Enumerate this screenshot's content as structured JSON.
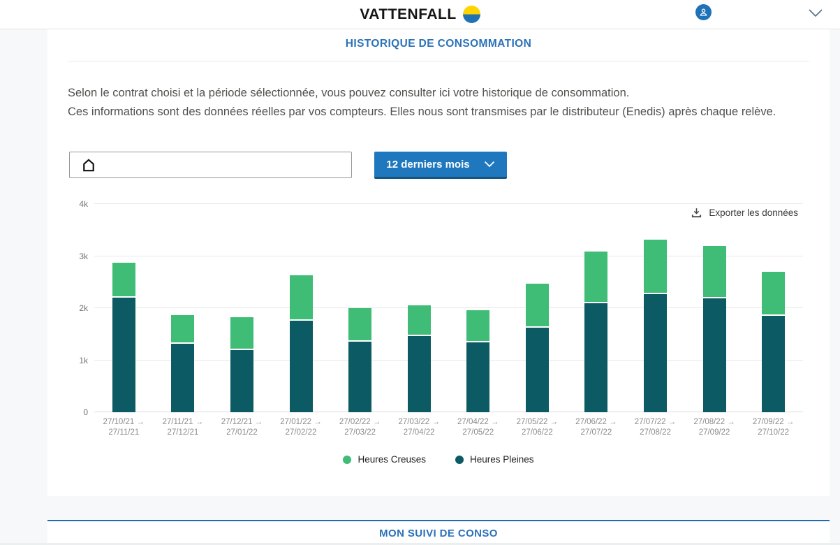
{
  "header": {
    "logo_text": "VATTENFALL",
    "brand_yellow": "#FFD400",
    "brand_blue": "#2071B5"
  },
  "consumption_section": {
    "title": "HISTORIQUE DE CONSOMMATION",
    "description_line1": "Selon le contrat choisi et la période sélectionnée, vous pouvez consulter ici votre historique de consommation.",
    "description_line2": "Ces informations sont des données réelles par vos compteurs. Elles nous sont transmises par le distributeur (Enedis) après chaque relève.",
    "address_select_value": "",
    "period_button_label": "12 derniers mois",
    "export_label": "Exporter les données"
  },
  "chart_data": {
    "type": "bar",
    "stacked": true,
    "title": "",
    "xlabel": "",
    "ylabel": "",
    "ylim": [
      0,
      4000
    ],
    "yticks": [
      "0",
      "1k",
      "2k",
      "3k",
      "4k"
    ],
    "grid": true,
    "legend_position": "bottom",
    "legend_order": [
      "Heures Creuses",
      "Heures Pleines"
    ],
    "categories": [
      "27/10/21 → 27/11/21",
      "27/11/21 → 27/12/21",
      "27/12/21 → 27/01/22",
      "27/01/22 → 27/02/22",
      "27/02/22 → 27/03/22",
      "27/03/22 → 27/04/22",
      "27/04/22 → 27/05/22",
      "27/05/22 → 27/06/22",
      "27/06/22 → 27/07/22",
      "27/07/22 → 27/08/22",
      "27/08/22 → 27/09/22",
      "27/09/22 → 27/10/22"
    ],
    "series": [
      {
        "name": "Heures Pleines",
        "color": "#0C5A63",
        "values": [
          2200,
          1320,
          1190,
          1760,
          1350,
          1460,
          1340,
          1620,
          2100,
          2270,
          2190,
          1850
        ]
      },
      {
        "name": "Heures Creuses",
        "color": "#3FBC75",
        "values": [
          670,
          540,
          630,
          870,
          650,
          590,
          620,
          850,
          990,
          1050,
          1000,
          850
        ]
      }
    ]
  },
  "next_section": {
    "title": "MON SUIVI DE CONSO"
  },
  "colors": {
    "accent_blue": "#2B72B8",
    "button_blue": "#1F78BE",
    "button_blue_dark": "#15557E",
    "divider_blue": "#1D69B3",
    "hc_green": "#3FBC75",
    "hp_teal": "#0C5A63",
    "page_bg": "#F6F8F9"
  }
}
